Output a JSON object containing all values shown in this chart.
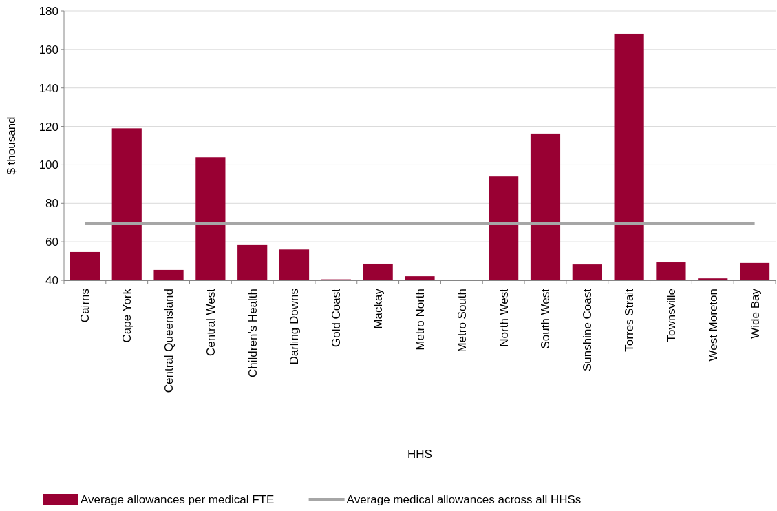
{
  "chart_data": {
    "type": "bar",
    "xlabel": "HHS",
    "ylabel": "$ thousand",
    "categories": [
      "Cairns",
      "Cape York",
      "Central Queensland",
      "Central West",
      "Children's Health",
      "Darling Downs",
      "Gold Coast",
      "Mackay",
      "Metro North",
      "Metro South",
      "North West",
      "South West",
      "Sunshine Coast",
      "Torres Strait",
      "Townsville",
      "West Moreton",
      "Wide Bay"
    ],
    "series": [
      {
        "name": "Average allowances per medical FTE",
        "color": "#990033",
        "values": [
          54.7,
          119,
          45.4,
          104,
          58.3,
          56,
          40.5,
          48.6,
          42.1,
          40.3,
          94,
          116.3,
          48.2,
          168.2,
          49.3,
          41,
          49
        ]
      },
      {
        "name": "Average medical allowances across all HHSs",
        "type": "line",
        "color": "#a6a6a6",
        "values": [
          69.4,
          69.4,
          69.4,
          69.4,
          69.4,
          69.4,
          69.4,
          69.4,
          69.4,
          69.4,
          69.4,
          69.4,
          69.4,
          69.4,
          69.4,
          69.4,
          69.4
        ]
      }
    ],
    "ylim": [
      40,
      180
    ],
    "yticks": [
      40,
      60,
      80,
      100,
      120,
      140,
      160,
      180
    ],
    "grid": "y",
    "legend": "bottom",
    "marker": "none",
    "line_style": "solid"
  }
}
